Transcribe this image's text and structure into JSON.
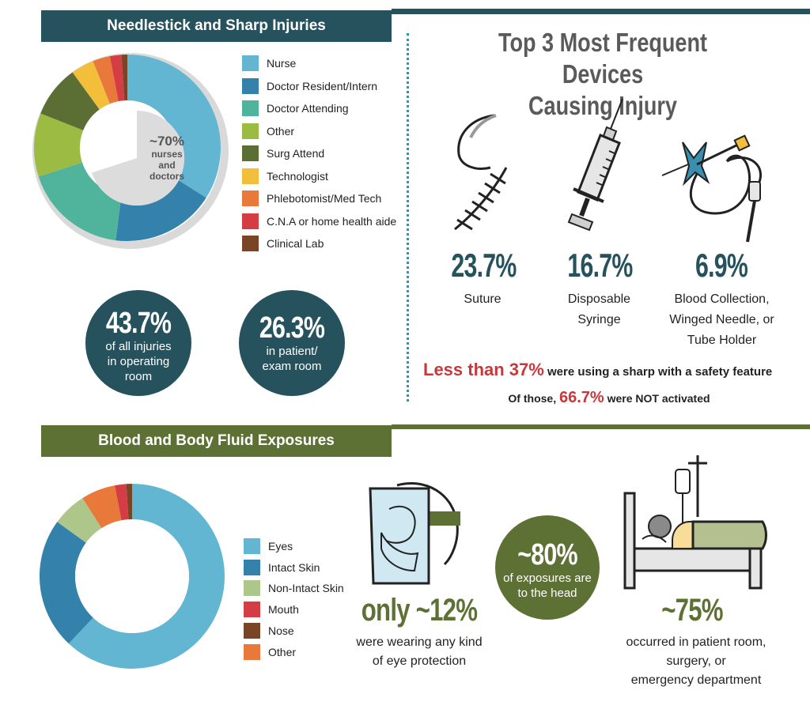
{
  "needlestick": {
    "title": "Needlestick and Sharp Injuries",
    "center_text": [
      "~70%",
      "nurses",
      "and",
      "doctors"
    ],
    "stats": [
      {
        "value": "43.7%",
        "text": [
          "of all injuries",
          "in operating",
          "room"
        ]
      },
      {
        "value": "26.3%",
        "text": [
          "in patient/",
          "exam room"
        ]
      }
    ]
  },
  "devices": {
    "title_line1": "Top 3 Most Frequent Devices",
    "title_line2": "Causing Injury",
    "items": [
      {
        "pct": "23.7%",
        "label_lines": [
          "Suture"
        ],
        "icon": "suture-icon"
      },
      {
        "pct": "16.7%",
        "label_lines": [
          "Disposable",
          "Syringe"
        ],
        "icon": "syringe-icon"
      },
      {
        "pct": "6.9%",
        "label_lines": [
          "Blood Collection,",
          "Winged Needle, or",
          "Tube Holder"
        ],
        "icon": "winged-needle-icon"
      }
    ],
    "safety_red": "Less than 37%",
    "safety_rest": " were using a sharp with a safety feature",
    "of_those_pre": "Of those, ",
    "of_those_red": "66.7%",
    "of_those_mid": " were ",
    "of_those_not": "NOT",
    "of_those_post": " activated"
  },
  "exposures": {
    "title": "Blood and Body Fluid Exposures",
    "eye_stat": "only ~12%",
    "eye_text": [
      "were wearing any kind",
      "of eye protection"
    ],
    "head_stat": "~80%",
    "head_text": [
      "of exposures are",
      "to the head"
    ],
    "room_stat": "~75%",
    "room_text": [
      "occurred in patient room,",
      "surgery, or",
      "emergency department"
    ]
  },
  "chart_data": [
    {
      "type": "pie",
      "title": "",
      "categories": [
        "Nurse",
        "Doctor Resident/Intern",
        "Doctor Attending",
        "Other",
        "Surg Attend",
        "Technologist",
        "Phlebotomist/Med Tech",
        "C.N.A or home health aide",
        "Clinical Lab"
      ],
      "values": [
        34,
        18,
        18,
        11,
        9,
        4,
        3,
        2,
        1
      ],
      "colors": [
        "#62b6d2",
        "#3481ac",
        "#50b39b",
        "#9bbb43",
        "#5b6e33",
        "#f3bf3a",
        "#e8793a",
        "#d33d43",
        "#7a4527"
      ],
      "legend": "right"
    },
    {
      "type": "pie",
      "title": "",
      "categories": [
        "Eyes",
        "Intact Skin",
        "Non-Intact Skin",
        "Mouth",
        "Nose",
        "Other"
      ],
      "values": [
        62,
        23,
        6,
        2,
        1,
        6
      ],
      "colors": [
        "#62b6d2",
        "#3481ac",
        "#adc68a",
        "#d33d43",
        "#7a4527",
        "#e8793a"
      ],
      "legend_order": [
        0,
        1,
        2,
        3,
        4,
        5
      ],
      "draw_order": [
        0,
        1,
        2,
        5,
        3,
        4
      ],
      "legend": "right"
    }
  ]
}
